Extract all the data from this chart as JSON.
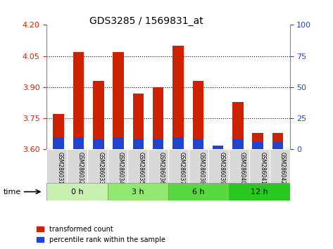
{
  "title": "GDS3285 / 1569831_at",
  "samples": [
    "GSM286031",
    "GSM286032",
    "GSM286033",
    "GSM286034",
    "GSM286035",
    "GSM286036",
    "GSM286037",
    "GSM286038",
    "GSM286039",
    "GSM286040",
    "GSM286041",
    "GSM286042"
  ],
  "red_values": [
    3.77,
    4.07,
    3.93,
    4.07,
    3.87,
    3.9,
    4.1,
    3.93,
    3.61,
    3.83,
    3.68,
    3.68
  ],
  "blue_percentile": [
    10,
    10,
    8,
    10,
    8,
    8,
    10,
    8,
    3,
    8,
    6,
    6
  ],
  "ylim_left": [
    3.6,
    4.2
  ],
  "ylim_right": [
    0,
    100
  ],
  "yticks_left": [
    3.6,
    3.75,
    3.9,
    4.05,
    4.2
  ],
  "yticks_right": [
    0,
    25,
    50,
    75,
    100
  ],
  "groups": [
    {
      "label": "0 h",
      "samples": [
        0,
        1,
        2
      ],
      "color": "#c8f0b0"
    },
    {
      "label": "3 h",
      "samples": [
        3,
        4,
        5
      ],
      "color": "#90e870"
    },
    {
      "label": "6 h",
      "samples": [
        6,
        7,
        8
      ],
      "color": "#58d840"
    },
    {
      "label": "12 h",
      "samples": [
        9,
        10,
        11
      ],
      "color": "#28c820"
    }
  ],
  "bar_color_red": "#cc2200",
  "bar_color_blue": "#2244cc",
  "bar_width": 0.55,
  "base": 3.6,
  "bg_color": "#ffffff",
  "tick_label_color_left": "#cc2200",
  "tick_label_color_right": "#2244cc",
  "legend_red": "transformed count",
  "legend_blue": "percentile rank within the sample"
}
